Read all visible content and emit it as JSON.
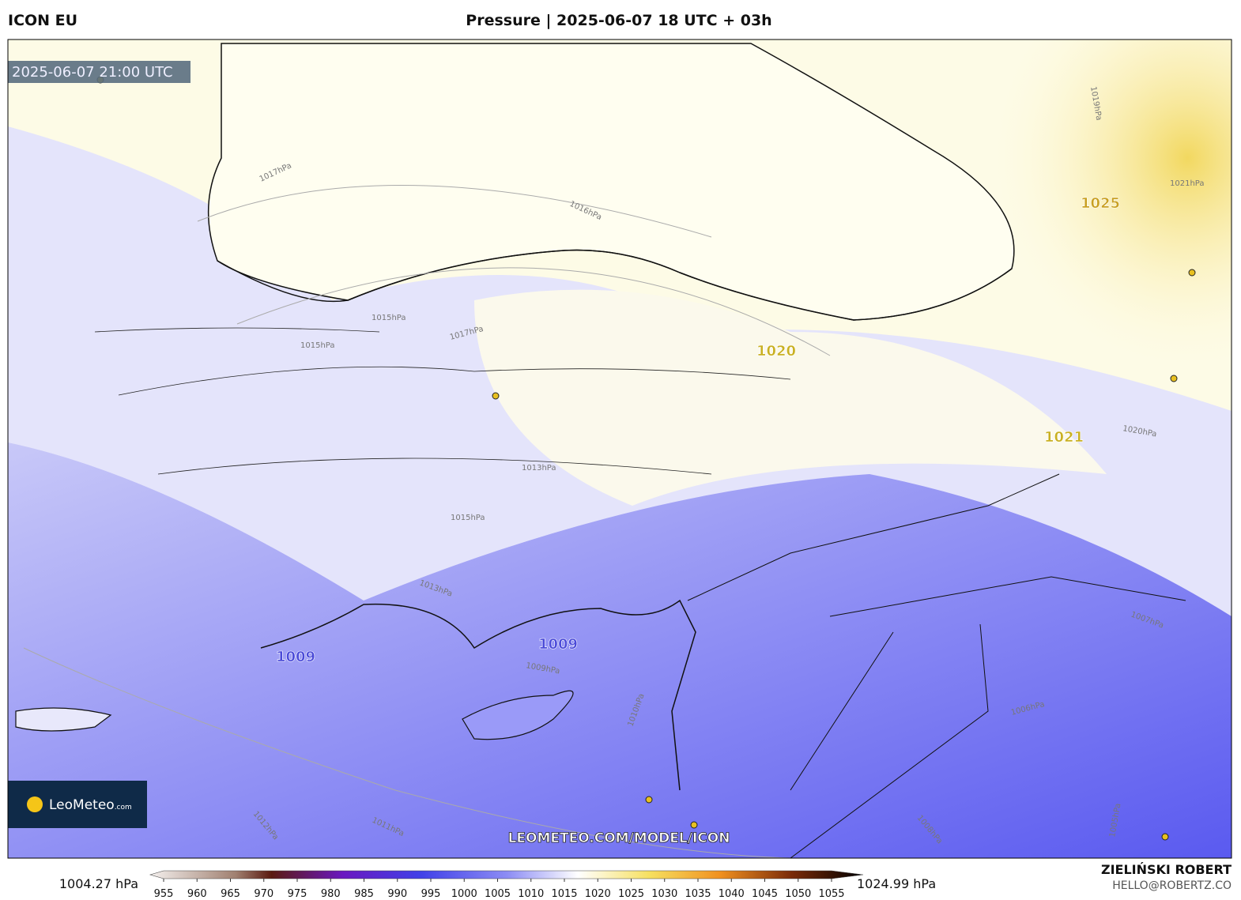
{
  "header": {
    "model": "ICON EU",
    "title": "Pressure | 2025-06-07 18 UTC + 03h",
    "timestamp": "2025-06-07 21:00 UTC"
  },
  "map": {
    "pressure_labels": [
      "1025",
      "1020",
      "1021",
      "1009",
      "1009"
    ],
    "contour_labels": [
      "1017hPa",
      "1016hPa",
      "1015hPa",
      "1015hPa",
      "1017hPa",
      "1013hPa",
      "1015hPa",
      "1013hPa",
      "1009hPa",
      "1010hPa",
      "1011hPa",
      "1012hPa",
      "1008hPa",
      "1007hPa",
      "1006hPa",
      "1005hPa",
      "1021hPa",
      "1020hPa",
      "1019hPa"
    ],
    "watermark": "LEOMETEO.COM/MODEL/ICON",
    "logo": "LeoMeteo",
    "logo_suffix": ".com"
  },
  "colorbar": {
    "min_label": "1004.27 hPa",
    "max_label": "1024.99 hPa",
    "ticks": [
      955,
      960,
      965,
      970,
      975,
      980,
      985,
      990,
      995,
      1000,
      1005,
      1010,
      1015,
      1020,
      1025,
      1030,
      1035,
      1040,
      1045,
      1050,
      1055
    ]
  },
  "footer": {
    "author": "ZIELIŃSKI ROBERT",
    "email": "HELLO@ROBERTZ.CO"
  }
}
